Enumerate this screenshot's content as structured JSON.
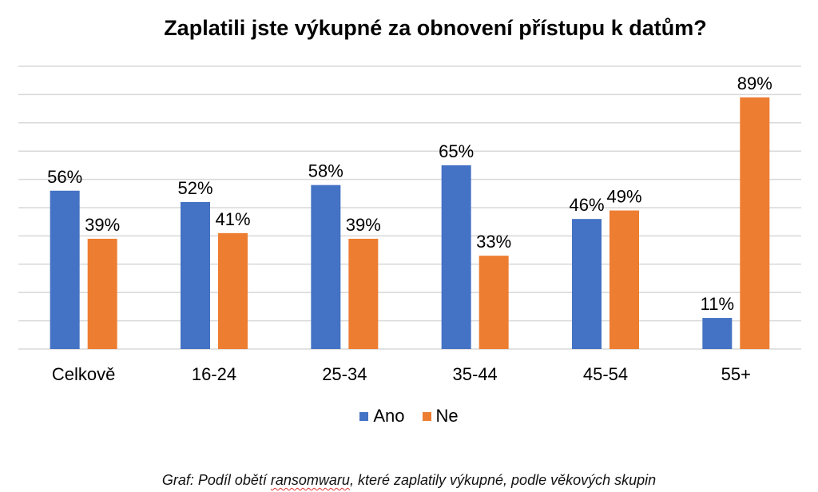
{
  "chart_data": {
    "type": "bar",
    "title": "Zaplatili jste výkupné za obnovení přístupu k datům?",
    "categories": [
      "Celkově",
      "16-24",
      "25-34",
      "35-44",
      "45-54",
      "55+"
    ],
    "series": [
      {
        "name": "Ano",
        "color": "#4472C4",
        "values": [
          56,
          52,
          58,
          65,
          46,
          11
        ],
        "labels": [
          "56%",
          "52%",
          "58%",
          "65%",
          "46%",
          "11%"
        ]
      },
      {
        "name": "Ne",
        "color": "#ED7D31",
        "values": [
          39,
          41,
          39,
          33,
          49,
          89
        ],
        "labels": [
          "39%",
          "41%",
          "39%",
          "33%",
          "49%",
          "89%"
        ]
      }
    ],
    "ylim": [
      0,
      100
    ],
    "grid": true,
    "legend_position": "bottom",
    "xlabel": "",
    "ylabel": ""
  },
  "caption": {
    "before": "Graf: Podíl obětí ",
    "flagged_word": "ransomwaru",
    "after": ", které zaplatily výkupné, podle věkových skupin"
  }
}
